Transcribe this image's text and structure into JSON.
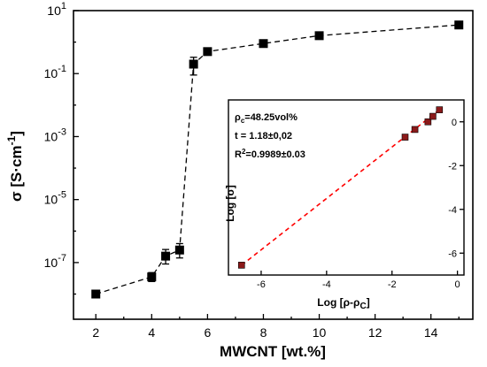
{
  "chart_data": [
    {
      "type": "scatter",
      "title": "",
      "xlabel": "MWCNT [wt.%]",
      "ylabel": "σ [S·cm⁻¹]",
      "xlim": [
        1.2,
        15.5
      ],
      "ylim_log10": [
        -8.8,
        1
      ],
      "y_scale": "log",
      "grid": false,
      "x_ticks": [
        2,
        4,
        6,
        8,
        10,
        12,
        14
      ],
      "y_tick_exponents": [
        -7,
        -5,
        -3,
        -1,
        1
      ],
      "y_tick_labels": [
        "10-7",
        "10-5",
        "10-3",
        "10-1",
        "101"
      ],
      "series": [
        {
          "marker": "square",
          "connect": "dashed",
          "color": "#000000",
          "x": [
            2,
            4,
            4.5,
            5,
            5.5,
            6,
            8,
            10,
            15
          ],
          "y": [
            1e-08,
            3.5e-08,
            1.6e-07,
            2.5e-07,
            0.2,
            0.5,
            0.9,
            1.6,
            3.5
          ],
          "error_low": [
            1e-08,
            2.5e-08,
            9e-08,
            1.4e-07,
            0.09,
            0.5,
            0.9,
            1.6,
            3.5
          ],
          "error_high": [
            1e-08,
            4.8e-08,
            2.6e-07,
            4e-07,
            0.33,
            0.5,
            0.9,
            1.6,
            3.5
          ]
        }
      ]
    },
    {
      "type": "scatter",
      "title": "",
      "xlabel": "Log [ρ-ρC]",
      "ylabel": "Log [σ]",
      "xlim": [
        -7,
        0.2
      ],
      "ylim": [
        -7,
        1
      ],
      "grid": false,
      "x_ticks": [
        -6,
        -4,
        -2,
        0
      ],
      "y_ticks": [
        -6,
        -4,
        -2,
        0
      ],
      "annotations": [
        "ρc=48.25vol%",
        "t = 1.18±0,02",
        "R2=0.9989±0.03"
      ],
      "series": [
        {
          "marker": "square",
          "color": "#8b1a1a",
          "x": [
            -6.6,
            -1.6,
            -1.3,
            -0.9,
            -0.75,
            -0.55
          ],
          "y": [
            -6.55,
            -0.7,
            -0.35,
            0.0,
            0.25,
            0.55
          ]
        },
        {
          "type": "line",
          "style": "dashed",
          "color": "#ff0000",
          "x": [
            -6.6,
            -0.55
          ],
          "y": [
            -6.55,
            0.55
          ]
        }
      ]
    }
  ]
}
